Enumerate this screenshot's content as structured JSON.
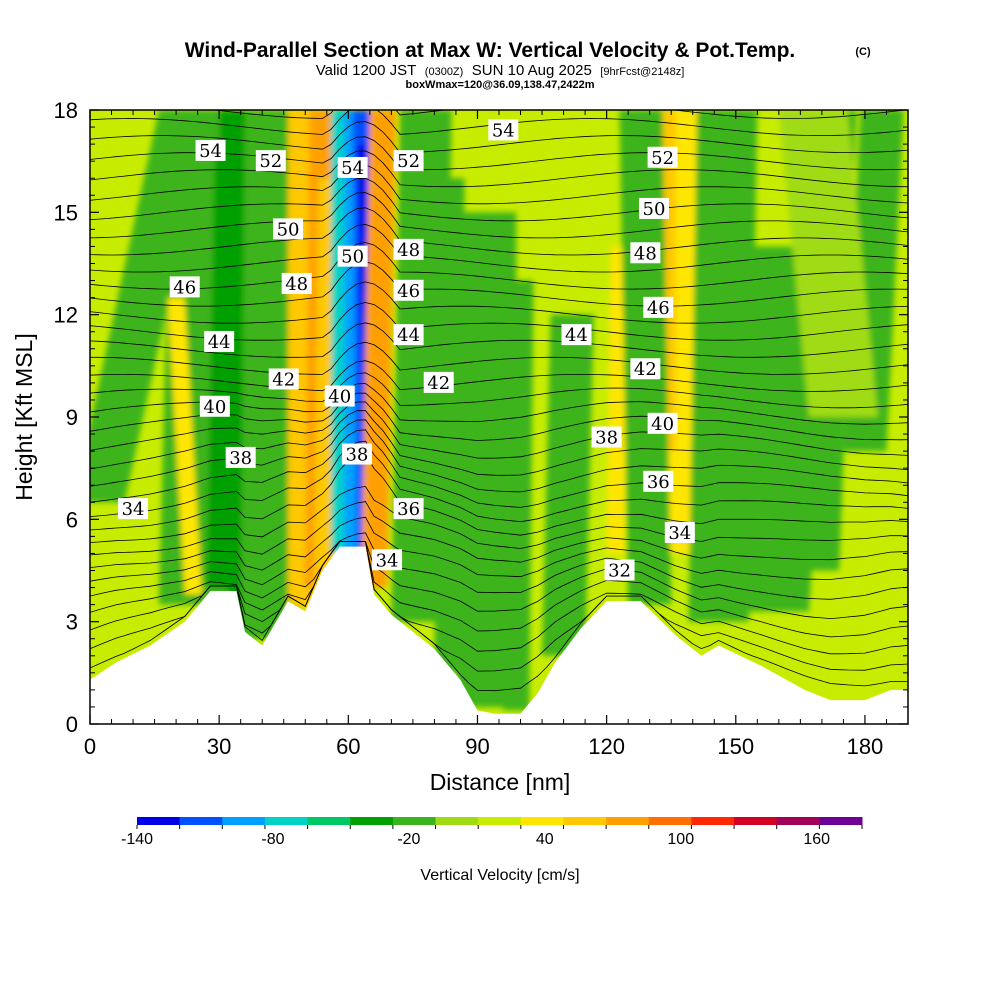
{
  "title": "Wind-Parallel Section at Max W: Vertical Velocity & Pot.Temp.",
  "credit": "(C)",
  "subtitle_valid": "Valid 1200 JST",
  "subtitle_utc": "(0300Z)",
  "subtitle_date": "SUN 10 Aug 2025",
  "subtitle_fcst": "[9hrFcst@2148z]",
  "subtitle_box": "boxWmax=120@36.09,138.47,2422m",
  "chart_data": {
    "type": "heatmap",
    "title": "Wind-Parallel Section at Max W: Vertical Velocity & Pot.Temp.",
    "xlabel": "Distance [nm]",
    "ylabel": "Height [Kft MSL]",
    "xlim": [
      0,
      190
    ],
    "ylim": [
      0,
      18
    ],
    "x_ticks": [
      0,
      30,
      60,
      90,
      120,
      150,
      180
    ],
    "y_ticks": [
      0,
      3,
      6,
      9,
      12,
      15,
      18
    ],
    "colorbar": {
      "label": "Vertical Velocity [cm/s]",
      "ticks": [
        -140,
        -80,
        -20,
        40,
        100,
        160
      ],
      "levels": [
        -140,
        -120,
        -100,
        -80,
        -60,
        -40,
        -20,
        0,
        20,
        40,
        60,
        80,
        100,
        120,
        140,
        160,
        180
      ],
      "colors": [
        "#0000e6",
        "#0050ff",
        "#00a0ff",
        "#00d2c8",
        "#00c864",
        "#00a000",
        "#3cb41e",
        "#a0dc14",
        "#c8ec00",
        "#ffe600",
        "#ffc800",
        "#ffa000",
        "#ff6e00",
        "#ff2800",
        "#d20023",
        "#a0005a",
        "#6e0096"
      ]
    },
    "terrain_kft": [
      [
        0,
        1.3
      ],
      [
        6,
        1.8
      ],
      [
        14,
        2.3
      ],
      [
        22,
        3.0
      ],
      [
        28,
        3.9
      ],
      [
        34,
        3.9
      ],
      [
        36,
        2.7
      ],
      [
        40,
        2.3
      ],
      [
        46,
        3.6
      ],
      [
        50,
        3.3
      ],
      [
        54,
        4.5
      ],
      [
        58,
        5.2
      ],
      [
        64,
        5.2
      ],
      [
        66,
        3.8
      ],
      [
        70,
        3.2
      ],
      [
        76,
        2.6
      ],
      [
        80,
        2.2
      ],
      [
        86,
        1.3
      ],
      [
        90,
        0.4
      ],
      [
        94,
        0.3
      ],
      [
        100,
        0.3
      ],
      [
        104,
        0.9
      ],
      [
        108,
        1.8
      ],
      [
        114,
        2.8
      ],
      [
        120,
        3.6
      ],
      [
        128,
        3.6
      ],
      [
        136,
        2.6
      ],
      [
        142,
        2.0
      ],
      [
        146,
        2.3
      ],
      [
        156,
        1.7
      ],
      [
        166,
        1.0
      ],
      [
        172,
        0.7
      ],
      [
        180,
        0.7
      ],
      [
        186,
        1.0
      ],
      [
        190,
        1.0
      ]
    ],
    "theta_contour_labels": [
      {
        "text": "54",
        "x": 28,
        "y": 16.8
      },
      {
        "text": "52",
        "x": 42,
        "y": 16.5
      },
      {
        "text": "54",
        "x": 61,
        "y": 16.3
      },
      {
        "text": "52",
        "x": 74,
        "y": 16.5
      },
      {
        "text": "54",
        "x": 96,
        "y": 17.4
      },
      {
        "text": "52",
        "x": 133,
        "y": 16.6
      },
      {
        "text": "50",
        "x": 46,
        "y": 14.5
      },
      {
        "text": "50",
        "x": 61,
        "y": 13.7
      },
      {
        "text": "48",
        "x": 74,
        "y": 13.9
      },
      {
        "text": "50",
        "x": 131,
        "y": 15.1
      },
      {
        "text": "48",
        "x": 48,
        "y": 12.9
      },
      {
        "text": "46",
        "x": 74,
        "y": 12.7
      },
      {
        "text": "46",
        "x": 22,
        "y": 12.8
      },
      {
        "text": "48",
        "x": 129,
        "y": 13.8
      },
      {
        "text": "44",
        "x": 30,
        "y": 11.2
      },
      {
        "text": "44",
        "x": 74,
        "y": 11.4
      },
      {
        "text": "44",
        "x": 113,
        "y": 11.4
      },
      {
        "text": "46",
        "x": 132,
        "y": 12.2
      },
      {
        "text": "42",
        "x": 45,
        "y": 10.1
      },
      {
        "text": "42",
        "x": 81,
        "y": 10.0
      },
      {
        "text": "42",
        "x": 129,
        "y": 10.4
      },
      {
        "text": "40",
        "x": 29,
        "y": 9.3
      },
      {
        "text": "40",
        "x": 58,
        "y": 9.6
      },
      {
        "text": "40",
        "x": 133,
        "y": 8.8
      },
      {
        "text": "38",
        "x": 35,
        "y": 7.8
      },
      {
        "text": "38",
        "x": 62,
        "y": 7.9
      },
      {
        "text": "38",
        "x": 120,
        "y": 8.4
      },
      {
        "text": "36",
        "x": 74,
        "y": 6.3
      },
      {
        "text": "36",
        "x": 132,
        "y": 7.1
      },
      {
        "text": "34",
        "x": 10,
        "y": 6.3
      },
      {
        "text": "34",
        "x": 69,
        "y": 4.8
      },
      {
        "text": "34",
        "x": 137,
        "y": 5.6
      },
      {
        "text": "32",
        "x": 123,
        "y": 4.5
      }
    ]
  }
}
